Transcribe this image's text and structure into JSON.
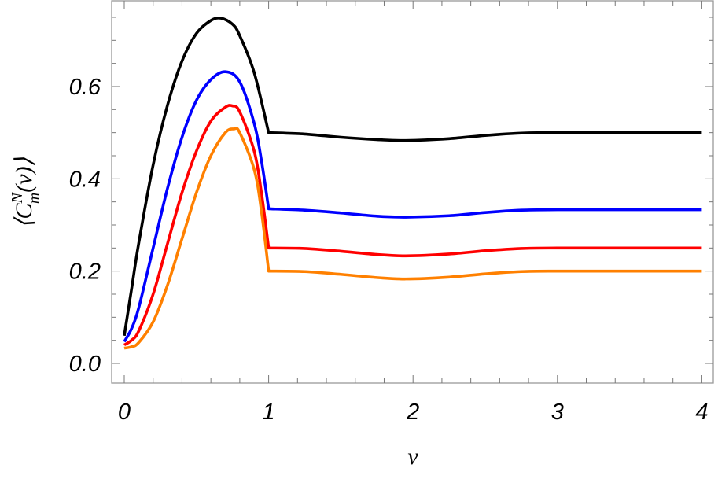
{
  "chart_data": {
    "type": "line",
    "title": "",
    "xlabel": "v",
    "ylabel": "⟨C_m^N(v)⟩",
    "ylabel_parts": {
      "open": "⟨",
      "base": "C",
      "sup": "N",
      "sub": "m",
      "arg": "(v)",
      "close": "⟩"
    },
    "xlim": [
      0,
      4
    ],
    "ylim": [
      -0.04,
      0.79
    ],
    "x_ticks": [
      "0",
      "1",
      "2",
      "3",
      "4"
    ],
    "y_ticks": [
      "0.0",
      "0.2",
      "0.4",
      "0.6"
    ],
    "grid": false,
    "legend": "none",
    "series": [
      {
        "color": "#000000",
        "x": [
          0,
          0.05,
          0.1,
          0.2,
          0.3,
          0.4,
          0.5,
          0.6,
          0.67,
          0.75,
          0.8,
          0.9,
          1.0,
          1.25,
          1.5,
          1.75,
          1.95,
          2.25,
          2.5,
          2.75,
          3.0,
          3.5,
          4.0
        ],
        "y": [
          0.06,
          0.16,
          0.26,
          0.43,
          0.56,
          0.655,
          0.715,
          0.743,
          0.748,
          0.735,
          0.71,
          0.63,
          0.5,
          0.497,
          0.49,
          0.485,
          0.483,
          0.487,
          0.494,
          0.499,
          0.5,
          0.5,
          0.5
        ]
      },
      {
        "color": "#0000ff",
        "x": [
          0,
          0.05,
          0.1,
          0.2,
          0.3,
          0.4,
          0.5,
          0.6,
          0.7,
          0.8,
          0.9,
          0.95,
          1.0,
          1.25,
          1.5,
          1.75,
          1.95,
          2.25,
          2.5,
          2.75,
          3.0,
          3.5,
          4.0
        ],
        "y": [
          0.047,
          0.075,
          0.12,
          0.25,
          0.38,
          0.49,
          0.57,
          0.615,
          0.632,
          0.61,
          0.52,
          0.44,
          0.335,
          0.332,
          0.326,
          0.319,
          0.317,
          0.32,
          0.327,
          0.332,
          0.333,
          0.333,
          0.333
        ]
      },
      {
        "color": "#ff0000",
        "x": [
          0,
          0.05,
          0.1,
          0.2,
          0.3,
          0.4,
          0.5,
          0.6,
          0.7,
          0.75,
          0.8,
          0.9,
          0.95,
          1.0,
          1.25,
          1.5,
          1.75,
          1.95,
          2.25,
          2.5,
          2.75,
          3.0,
          3.5,
          4.0
        ],
        "y": [
          0.04,
          0.05,
          0.07,
          0.15,
          0.26,
          0.37,
          0.46,
          0.525,
          0.555,
          0.558,
          0.545,
          0.46,
          0.37,
          0.25,
          0.249,
          0.243,
          0.236,
          0.233,
          0.237,
          0.244,
          0.249,
          0.25,
          0.25,
          0.25
        ]
      },
      {
        "color": "#ff8000",
        "x": [
          0,
          0.05,
          0.1,
          0.2,
          0.3,
          0.4,
          0.5,
          0.6,
          0.7,
          0.76,
          0.8,
          0.9,
          0.95,
          1.0,
          1.25,
          1.5,
          1.75,
          1.95,
          2.25,
          2.5,
          2.75,
          3.0,
          3.5,
          4.0
        ],
        "y": [
          0.033,
          0.036,
          0.045,
          0.09,
          0.17,
          0.27,
          0.37,
          0.45,
          0.5,
          0.508,
          0.5,
          0.42,
          0.33,
          0.2,
          0.199,
          0.193,
          0.186,
          0.183,
          0.187,
          0.194,
          0.199,
          0.2,
          0.2,
          0.2
        ]
      }
    ]
  }
}
